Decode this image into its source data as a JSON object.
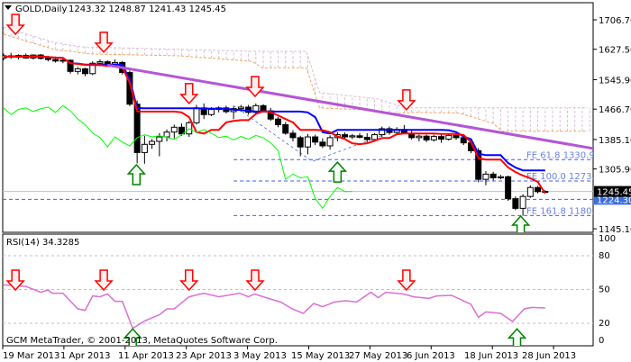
{
  "header": {
    "symbol": "GOLD,Daily",
    "ohlc": "1243.32 1248.87 1241.43 1245.45",
    "menu_icon": "triangle-down-icon"
  },
  "rsi_label": "RSI(14) 34.3285",
  "copyright": "GCM MetaTrader, © 2001-2013, MetaQuotes Software Corp.",
  "colors": {
    "tenkan": "#ff0000",
    "kijun": "#0000ff",
    "chikou": "#00ff00",
    "span_a": "#f4a460",
    "span_b": "#d8bfd8",
    "trendline": "#b455d6",
    "fe_lines": "#3d5ef0",
    "rsi": "#da70d6",
    "down_arrow": "#ff0000",
    "up_arrow": "#008000"
  },
  "chart_data": {
    "type": "candlestick",
    "title": "GOLD,Daily",
    "price_axis": {
      "ticks": [
        "1706.70",
        "1627.50",
        "1545.90",
        "1466.70",
        "1385.10",
        "1305.90",
        "1145.10"
      ],
      "ylim": [
        1130,
        1720
      ],
      "current_price": "1245.45",
      "marked_level": "1224.30"
    },
    "date_labels": [
      "19 Mar 2013",
      "1 Apr 2013",
      "11 Apr 2013",
      "23 Apr 2013",
      "3 May 2013",
      "15 May 2013",
      "27 May 2013",
      "6 Jun 2013",
      "18 Jun 2013",
      "28 Jun 2013"
    ],
    "ohlc": [
      [
        1604,
        1616,
        1598,
        1610
      ],
      [
        1610,
        1618,
        1602,
        1606
      ],
      [
        1606,
        1614,
        1600,
        1611
      ],
      [
        1611,
        1616,
        1602,
        1604
      ],
      [
        1604,
        1614,
        1600,
        1612
      ],
      [
        1612,
        1615,
        1600,
        1603
      ],
      [
        1603,
        1610,
        1595,
        1600
      ],
      [
        1600,
        1608,
        1592,
        1596
      ],
      [
        1596,
        1603,
        1590,
        1598
      ],
      [
        1598,
        1600,
        1562,
        1568
      ],
      [
        1568,
        1580,
        1560,
        1575
      ],
      [
        1575,
        1578,
        1555,
        1562
      ],
      [
        1562,
        1595,
        1558,
        1590
      ],
      [
        1590,
        1600,
        1582,
        1594
      ],
      [
        1594,
        1598,
        1585,
        1588
      ],
      [
        1588,
        1600,
        1580,
        1592
      ],
      [
        1592,
        1596,
        1560,
        1565
      ],
      [
        1565,
        1570,
        1475,
        1480
      ],
      [
        1480,
        1490,
        1321,
        1350
      ],
      [
        1350,
        1395,
        1320,
        1372
      ],
      [
        1372,
        1386,
        1360,
        1380
      ],
      [
        1380,
        1402,
        1340,
        1392
      ],
      [
        1392,
        1412,
        1380,
        1405
      ],
      [
        1405,
        1425,
        1388,
        1418
      ],
      [
        1418,
        1428,
        1395,
        1400
      ],
      [
        1400,
        1435,
        1392,
        1430
      ],
      [
        1430,
        1478,
        1425,
        1470
      ],
      [
        1470,
        1482,
        1440,
        1452
      ],
      [
        1452,
        1472,
        1448,
        1466
      ],
      [
        1466,
        1474,
        1458,
        1470
      ],
      [
        1470,
        1476,
        1455,
        1460
      ],
      [
        1460,
        1474,
        1440,
        1468
      ],
      [
        1468,
        1478,
        1460,
        1472
      ],
      [
        1472,
        1478,
        1452,
        1458
      ],
      [
        1458,
        1482,
        1455,
        1476
      ],
      [
        1476,
        1480,
        1458,
        1462
      ],
      [
        1462,
        1470,
        1435,
        1440
      ],
      [
        1440,
        1446,
        1418,
        1425
      ],
      [
        1425,
        1432,
        1398,
        1402
      ],
      [
        1402,
        1410,
        1380,
        1390
      ],
      [
        1390,
        1395,
        1340,
        1365
      ],
      [
        1365,
        1400,
        1345,
        1392
      ],
      [
        1392,
        1398,
        1370,
        1378
      ],
      [
        1378,
        1388,
        1362,
        1368
      ],
      [
        1368,
        1396,
        1358,
        1390
      ],
      [
        1390,
        1405,
        1380,
        1398
      ],
      [
        1398,
        1404,
        1385,
        1392
      ],
      [
        1392,
        1400,
        1386,
        1395
      ],
      [
        1395,
        1402,
        1388,
        1391
      ],
      [
        1391,
        1402,
        1378,
        1385
      ],
      [
        1385,
        1402,
        1380,
        1398
      ],
      [
        1398,
        1420,
        1392,
        1414
      ],
      [
        1414,
        1420,
        1398,
        1404
      ],
      [
        1404,
        1418,
        1400,
        1412
      ],
      [
        1412,
        1424,
        1400,
        1402
      ],
      [
        1402,
        1408,
        1385,
        1390
      ],
      [
        1390,
        1398,
        1380,
        1394
      ],
      [
        1394,
        1398,
        1378,
        1384
      ],
      [
        1384,
        1398,
        1380,
        1393
      ],
      [
        1393,
        1398,
        1376,
        1386
      ],
      [
        1386,
        1400,
        1382,
        1396
      ],
      [
        1396,
        1400,
        1384,
        1390
      ],
      [
        1390,
        1396,
        1370,
        1376
      ],
      [
        1376,
        1382,
        1348,
        1355
      ],
      [
        1355,
        1362,
        1270,
        1278
      ],
      [
        1278,
        1300,
        1262,
        1292
      ],
      [
        1292,
        1298,
        1275,
        1282
      ],
      [
        1282,
        1290,
        1278,
        1285
      ],
      [
        1285,
        1288,
        1220,
        1226
      ],
      [
        1226,
        1232,
        1195,
        1200
      ],
      [
        1200,
        1238,
        1180,
        1232
      ],
      [
        1232,
        1262,
        1228,
        1256
      ],
      [
        1256,
        1260,
        1240,
        1245
      ],
      [
        1243.32,
        1248.87,
        1241.43,
        1245.45
      ]
    ],
    "ichimoku": {
      "tenkan": 9,
      "kijun": 26,
      "shift": 26
    },
    "cloud_span_a": [
      [
        0,
        1668
      ],
      [
        6.8,
        1627
      ],
      [
        11.7,
        1615
      ],
      [
        23.8,
        1610
      ],
      [
        33.5,
        1595
      ],
      [
        34.8,
        1578
      ],
      [
        40.8,
        1578
      ],
      [
        42.6,
        1470
      ],
      [
        48.1,
        1465
      ],
      [
        53,
        1455
      ],
      [
        55.4,
        1458
      ],
      [
        61.5,
        1456
      ],
      [
        66,
        1428
      ],
      [
        67.2,
        1407
      ],
      [
        78.7,
        1407
      ]
    ],
    "cloud_span_b": [
      [
        0,
        1687
      ],
      [
        6.8,
        1646
      ],
      [
        10.4,
        1634
      ],
      [
        33.5,
        1622
      ],
      [
        40.8,
        1622
      ],
      [
        42.6,
        1511
      ],
      [
        50.5,
        1494
      ],
      [
        54.2,
        1470
      ],
      [
        78.7,
        1470
      ]
    ],
    "trendline": [
      [
        14,
        1585
      ],
      [
        79.5,
        1361
      ]
    ],
    "fibo": [
      {
        "label": "FE 61.8 1330.92",
        "price": 1330.92
      },
      {
        "label": "FE 100.0 1273.57",
        "price": 1273.57
      },
      {
        "label": "FE 161.8 1180.80",
        "price": 1180.8
      }
    ],
    "fibo_start_bar": 31,
    "abcd_pattern": [
      [
        31,
        1476
      ],
      [
        41.6,
        1326
      ],
      [
        51.7,
        1401
      ]
    ],
    "signals": [
      {
        "type": "down",
        "bar": 1.6,
        "price": 1668
      },
      {
        "type": "down",
        "bar": 13.5,
        "price": 1620
      },
      {
        "type": "down",
        "bar": 25,
        "price": 1482
      },
      {
        "type": "down",
        "bar": 33.9,
        "price": 1501
      },
      {
        "type": "down",
        "bar": 54.3,
        "price": 1465
      },
      {
        "type": "up",
        "bar": 17.9,
        "price": 1317
      },
      {
        "type": "up",
        "bar": 45,
        "price": 1324
      },
      {
        "type": "up",
        "bar": 69.7,
        "price": 1179
      }
    ],
    "rsi": {
      "period": 14,
      "value": "34.3285",
      "levels": [
        "100",
        "80",
        "50",
        "20",
        "0"
      ],
      "level_lines": [
        80,
        50,
        20
      ],
      "points": [
        [
          0,
          54.1
        ],
        [
          3,
          52.8
        ],
        [
          5,
          47.5
        ],
        [
          6,
          49.6
        ],
        [
          6.5,
          46.7
        ],
        [
          8,
          46.7
        ],
        [
          10,
          32.8
        ],
        [
          11,
          31.5
        ],
        [
          12,
          44.3
        ],
        [
          13,
          43.5
        ],
        [
          14,
          46.1
        ],
        [
          15,
          39.5
        ],
        [
          16,
          39.5
        ],
        [
          17.4,
          15.5
        ],
        [
          19,
          22.1
        ],
        [
          21,
          27.5
        ],
        [
          22,
          32.8
        ],
        [
          23,
          32.8
        ],
        [
          25,
          43.5
        ],
        [
          27,
          46.7
        ],
        [
          29,
          43.5
        ],
        [
          31.8,
          46.7
        ],
        [
          33,
          43.5
        ],
        [
          33.8,
          46.1
        ],
        [
          35.4,
          42.7
        ],
        [
          37.4,
          38.7
        ],
        [
          38.9,
          32.8
        ],
        [
          40.4,
          28.8
        ],
        [
          41.8,
          37.6
        ],
        [
          43,
          34.7
        ],
        [
          44.6,
          38.9
        ],
        [
          46.1,
          40
        ],
        [
          47.6,
          38.9
        ],
        [
          49.5,
          47.5
        ],
        [
          50.5,
          42.7
        ],
        [
          51.5,
          47.5
        ],
        [
          53.8,
          46.1
        ],
        [
          55.3,
          43.5
        ],
        [
          57.3,
          42.1
        ],
        [
          58.4,
          44.3
        ],
        [
          60.4,
          44.8
        ],
        [
          63,
          36.8
        ],
        [
          64,
          25.3
        ],
        [
          65,
          30.1
        ],
        [
          67,
          28.8
        ],
        [
          68.6,
          21.6
        ],
        [
          70.2,
          32.8
        ],
        [
          71.2,
          34.1
        ],
        [
          73,
          33.6
        ]
      ],
      "signals": [
        {
          "type": "down",
          "bar": 1.6,
          "value": 49.6
        },
        {
          "type": "down",
          "bar": 13.5,
          "value": 49.6
        },
        {
          "type": "down",
          "bar": 25,
          "value": 49.6
        },
        {
          "type": "down",
          "bar": 33.9,
          "value": 49.6
        },
        {
          "type": "down",
          "bar": 54.3,
          "value": 49.6
        },
        {
          "type": "up",
          "bar": 17.4,
          "value": 15
        },
        {
          "type": "up",
          "bar": 69.2,
          "value": 15
        }
      ]
    }
  }
}
